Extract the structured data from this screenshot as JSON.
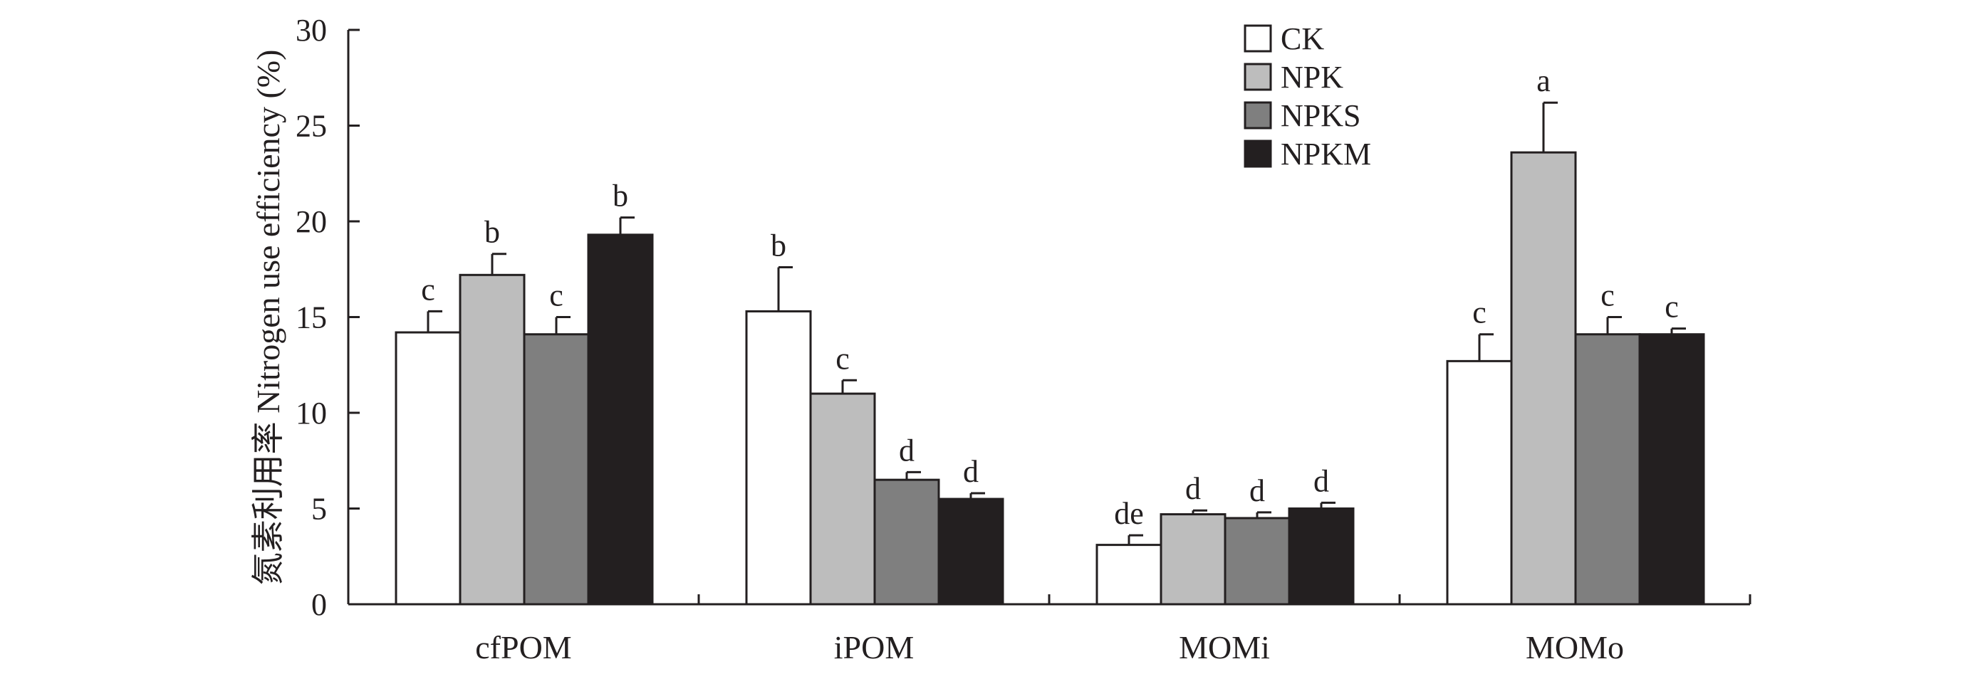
{
  "chart_data": {
    "type": "bar",
    "ylabel": "氮素利用率 Nitrogen use efficiency (%)",
    "xlabel": "",
    "ylim": [
      0,
      30
    ],
    "yticks": [
      "0",
      "5",
      "10",
      "15",
      "20",
      "25",
      "30"
    ],
    "categories": [
      "cfPOM",
      "iPOM",
      "MOMi",
      "MOMo"
    ],
    "legend_position": "top-right",
    "grid": false,
    "series": [
      {
        "name": "CK",
        "color": "#ffffff",
        "values": [
          14.2,
          15.3,
          3.1,
          12.7
        ],
        "errors": [
          1.1,
          2.3,
          0.5,
          1.4
        ],
        "letters": [
          "c",
          "b",
          "de",
          "c"
        ]
      },
      {
        "name": "NPK",
        "color": "#bdbdbd",
        "values": [
          17.2,
          11.0,
          4.7,
          23.6
        ],
        "errors": [
          1.1,
          0.7,
          0.2,
          2.6
        ],
        "letters": [
          "b",
          "c",
          "d",
          "a"
        ]
      },
      {
        "name": "NPKS",
        "color": "#7f7f7f",
        "values": [
          14.1,
          6.5,
          4.5,
          14.1
        ],
        "errors": [
          0.9,
          0.4,
          0.3,
          0.9
        ],
        "letters": [
          "c",
          "d",
          "d",
          "c"
        ]
      },
      {
        "name": "NPKM",
        "color": "#231f20",
        "values": [
          19.3,
          5.5,
          5.0,
          14.1
        ],
        "errors": [
          0.9,
          0.3,
          0.3,
          0.3
        ],
        "letters": [
          "b",
          "d",
          "d",
          "c"
        ]
      }
    ]
  }
}
